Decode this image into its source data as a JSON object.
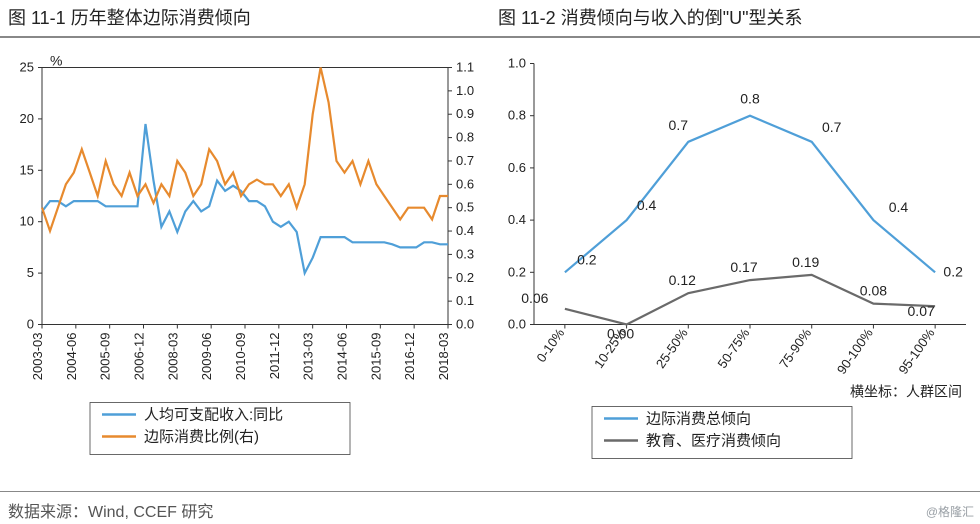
{
  "footer_source": "数据来源：Wind, CCEF 研究",
  "watermark": "@格隆汇",
  "common": {
    "border_color": "#888888",
    "text_color": "#222222",
    "line_width": 2.2,
    "gridline": "none",
    "font_family": "Microsoft YaHei"
  },
  "left": {
    "title": "图 11-1 历年整体边际消费倾向",
    "type": "dual-axis-line",
    "y_unit_label": "%",
    "y_left": {
      "min": 0,
      "max": 25,
      "tick_step": 5,
      "ticks": [
        0,
        5,
        10,
        15,
        20,
        25
      ]
    },
    "y_right": {
      "min": 0.0,
      "max": 1.1,
      "tick_step": 0.1,
      "ticks": [
        0.0,
        0.1,
        0.2,
        0.3,
        0.4,
        0.5,
        0.6,
        0.7,
        0.8,
        0.9,
        1.0,
        1.1
      ]
    },
    "x_labels": [
      "2003-03",
      "2004-06",
      "2005-09",
      "2006-12",
      "2008-03",
      "2009-06",
      "2010-09",
      "2011-12",
      "2013-03",
      "2014-06",
      "2015-09",
      "2016-12",
      "2018-03"
    ],
    "series": [
      {
        "name": "人均可支配收入:同比",
        "legend_key": "legend_income",
        "axis": "left",
        "color": "#4f9fd8",
        "values": [
          11,
          12,
          12,
          11.5,
          12,
          12,
          12,
          12,
          11.5,
          11.5,
          11.5,
          11.5,
          11.5,
          19.5,
          14,
          9.5,
          11,
          9,
          11,
          12,
          11,
          11.5,
          14,
          13,
          13.5,
          13,
          12,
          12,
          11.5,
          10,
          9.5,
          10,
          9,
          5,
          6.5,
          8.5,
          8.5,
          8.5,
          8.5,
          8,
          8,
          8,
          8,
          8,
          7.8,
          7.5,
          7.5,
          7.5,
          8,
          8,
          7.8,
          7.8
        ]
      },
      {
        "name": "边际消费比例(右)",
        "legend_key": "legend_mpc",
        "axis": "right",
        "color": "#e78a2e",
        "values": [
          0.5,
          0.4,
          0.5,
          0.6,
          0.65,
          0.75,
          0.65,
          0.55,
          0.7,
          0.6,
          0.55,
          0.65,
          0.55,
          0.6,
          0.52,
          0.6,
          0.55,
          0.7,
          0.65,
          0.55,
          0.6,
          0.75,
          0.7,
          0.6,
          0.65,
          0.55,
          0.6,
          0.62,
          0.6,
          0.6,
          0.55,
          0.6,
          0.5,
          0.6,
          0.9,
          1.1,
          0.95,
          0.7,
          0.65,
          0.7,
          0.6,
          0.7,
          0.6,
          0.55,
          0.5,
          0.45,
          0.5,
          0.5,
          0.5,
          0.45,
          0.55,
          0.55
        ]
      }
    ],
    "legend_position": "bottom"
  },
  "right": {
    "title": "图 11-2 消费倾向与收入的倒\"U\"型关系",
    "type": "line-labeled",
    "y": {
      "min": 0.0,
      "max": 1.0,
      "tick_step": 0.2,
      "ticks": [
        0.0,
        0.2,
        0.4,
        0.6,
        0.8,
        1.0
      ]
    },
    "x_categories": [
      "0-10%",
      "10-25%",
      "25-50%",
      "50-75%",
      "75-90%",
      "90-100%",
      "95-100%"
    ],
    "x_caption": "横坐标：人群区间",
    "series": [
      {
        "name": "边际消费总倾向",
        "legend_key": "legend_total",
        "color": "#4f9fd8",
        "values": [
          0.2,
          0.4,
          0.7,
          0.8,
          0.7,
          0.4,
          0.2
        ],
        "point_labels": [
          "0.2",
          "0.4",
          "0.7",
          "0.8",
          "0.7",
          "0.4",
          "0.2"
        ],
        "label_dx": [
          22,
          20,
          -10,
          0,
          20,
          25,
          18
        ],
        "label_dy": [
          -8,
          -10,
          -12,
          -12,
          -10,
          -8,
          4
        ]
      },
      {
        "name": "教育、医疗消费倾向",
        "legend_key": "legend_edu",
        "color": "#6a6a6a",
        "values": [
          0.06,
          0.0,
          0.12,
          0.17,
          0.19,
          0.08,
          0.07
        ],
        "point_labels": [
          "0.06",
          "0.00",
          "0.12",
          "0.17",
          "0.19",
          "0.08",
          "0.07"
        ],
        "label_dx": [
          -30,
          -6,
          -6,
          -6,
          -6,
          0,
          -14
        ],
        "label_dy": [
          -6,
          14,
          -8,
          -8,
          -8,
          -8,
          10
        ]
      }
    ],
    "legend_position": "bottom"
  }
}
